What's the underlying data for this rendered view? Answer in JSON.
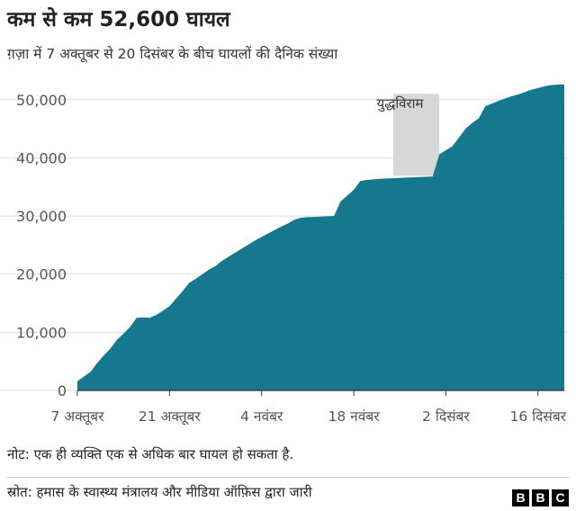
{
  "header": {
    "title": "कम से कम 52,600 घायल",
    "subtitle": "ग़ज़ा में 7 अक्तूबर से 20 दिसंबर के बीच घायलों की दैनिक संख्या"
  },
  "footer": {
    "note": "नोट: एक ही व्यक्ति एक से अधिक बार घायल हो सकता है.",
    "source": "स्रोत: हमास के स्वास्थ्य मंत्रालय और मीडिया ऑफ़िस द्वारा जारी",
    "logo": "BBC"
  },
  "chart_data": {
    "type": "area",
    "color": "#16788f",
    "annotation": {
      "label": "युद्धविराम",
      "from_day": 48,
      "to_day": 55,
      "color": "#d7d7d7"
    },
    "ylim": [
      0,
      52600
    ],
    "yticks": [
      0,
      10000,
      20000,
      30000,
      40000,
      50000
    ],
    "ytick_labels": [
      "0",
      "10,000",
      "20,000",
      "30,000",
      "40,000",
      "50,000"
    ],
    "xticks": [
      {
        "day": 0,
        "label": "7 अक्तूबर"
      },
      {
        "day": 14,
        "label": "21 अक्तूबर"
      },
      {
        "day": 28,
        "label": "4 नवंबर"
      },
      {
        "day": 42,
        "label": "18 नवंबर"
      },
      {
        "day": 56,
        "label": "2 दिसंबर"
      },
      {
        "day": 70,
        "label": "16 दिसंबर"
      }
    ],
    "x_day_max": 74,
    "series": [
      {
        "days": [
          0,
          1,
          2,
          3,
          4,
          5,
          6,
          7,
          8,
          9,
          10,
          11,
          12,
          13,
          14,
          15,
          16,
          17,
          18,
          19,
          20,
          21,
          22,
          23,
          24,
          25,
          26,
          27,
          28,
          29,
          30,
          31,
          32,
          33,
          34,
          35,
          36,
          37,
          38,
          39,
          40,
          41,
          42,
          43,
          44,
          45,
          46,
          47,
          48,
          49,
          50,
          51,
          52,
          53,
          54,
          55,
          56,
          57,
          58,
          59,
          60,
          61,
          62,
          63,
          64,
          65,
          66,
          67,
          68,
          69,
          70,
          71,
          72,
          73,
          74
        ],
        "values": [
          1600,
          2400,
          3200,
          4700,
          6000,
          7200,
          8700,
          9800,
          10900,
          12500,
          12550,
          12500,
          13000,
          13700,
          14500,
          15800,
          17100,
          18500,
          19200,
          20000,
          20800,
          21400,
          22300,
          23000,
          23700,
          24400,
          25100,
          25800,
          26400,
          27000,
          27600,
          28200,
          28700,
          29400,
          29700,
          29800,
          29850,
          29900,
          29950,
          30000,
          32500,
          33500,
          34500,
          36000,
          36200,
          36300,
          36400,
          36450,
          36500,
          36550,
          36600,
          36650,
          36700,
          36750,
          36800,
          40600,
          41300,
          42000,
          43500,
          45000,
          46000,
          46800,
          48900,
          49300,
          49800,
          50200,
          50600,
          50900,
          51300,
          51700,
          52000,
          52300,
          52500,
          52600,
          52600
        ]
      }
    ]
  }
}
